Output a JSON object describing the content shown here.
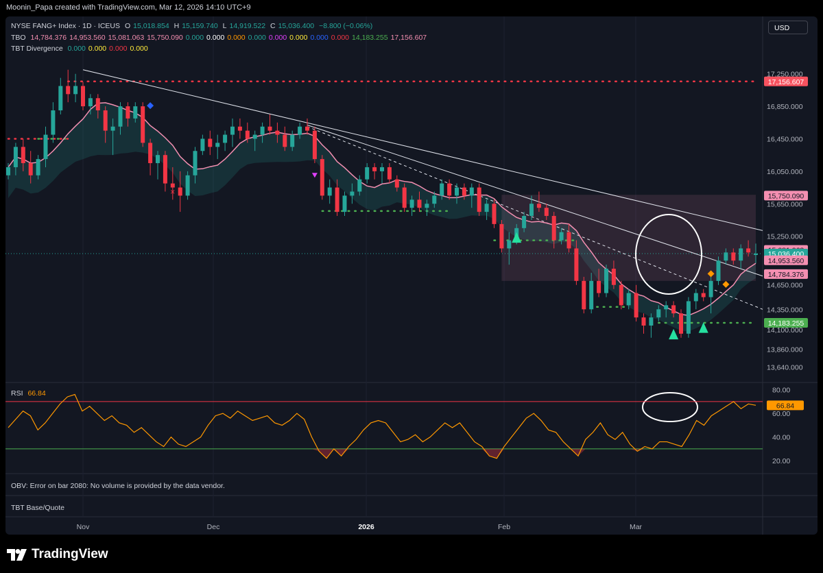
{
  "header_text": "Moonin_Papa created with TradingView.com, Mar 12, 2026 14:10 UTC+9",
  "currency": "USD",
  "legend": {
    "symbol": "NYSE FANG+ Index · 1D · ICEUS",
    "o_label": "O",
    "o": "15,018.854",
    "h_label": "H",
    "h": "15,159.740",
    "l_label": "L",
    "l": "14,919.522",
    "c_label": "C",
    "c": "15,036.400",
    "change": "−8.800 (−0.06%)",
    "tbo_name": "TBO",
    "tbo_values": [
      {
        "v": "14,784.376",
        "color": "#f48fb1"
      },
      {
        "v": "14,953.560",
        "color": "#f48fb1"
      },
      {
        "v": "15,081.063",
        "color": "#f48fb1"
      },
      {
        "v": "15,750.090",
        "color": "#f48fb1"
      },
      {
        "v": "0.000",
        "color": "#26a69a"
      },
      {
        "v": "0.000",
        "color": "#ffffff"
      },
      {
        "v": "0.000",
        "color": "#ff9800"
      },
      {
        "v": "0.000",
        "color": "#26a69a"
      },
      {
        "v": "0.000",
        "color": "#e040fb"
      },
      {
        "v": "0.000",
        "color": "#ffeb3b"
      },
      {
        "v": "0.000",
        "color": "#2962ff"
      },
      {
        "v": "0.000",
        "color": "#f23645"
      },
      {
        "v": "14,183.255",
        "color": "#4caf50"
      },
      {
        "v": "17,156.607",
        "color": "#f48fb1"
      }
    ],
    "div_name": "TBT Divergence",
    "div_values": [
      {
        "v": "0.000",
        "color": "#26a69a"
      },
      {
        "v": "0.000",
        "color": "#ffeb3b"
      },
      {
        "v": "0.000",
        "color": "#f23645"
      },
      {
        "v": "0.000",
        "color": "#ffeb3b"
      }
    ]
  },
  "rsi_label": "RSI",
  "rsi_value": "66.84",
  "obv_text": "OBV: Error on bar 2080: No volume is provided by the data vendor.",
  "tbt_text": "TBT Base/Quote",
  "brand": "TradingView",
  "colors": {
    "up": "#26a69a",
    "down": "#f23645",
    "rsi": "#ff9800",
    "ma_cyan": "#80deea",
    "ma_pink": "#f48fb1"
  },
  "chart_data": [
    {
      "type": "candlestick",
      "title": "NYSE FANG+ Index · 1D · ICEUS",
      "ylim": [
        13500,
        17450
      ],
      "y_ticks": [
        "17,250.000",
        "16,850.000",
        "16,450.000",
        "16,050.000",
        "15,650.000",
        "15,250.000",
        "14,650.000",
        "14,350.000",
        "14,100.000",
        "13,860.000",
        "13,640.000"
      ],
      "y_tick_values": [
        17250,
        16850,
        16450,
        16050,
        15650,
        15250,
        14650,
        14350,
        14100,
        13860,
        13640
      ],
      "x_labels": [
        "Nov",
        "Dec",
        "2026",
        "Feb",
        "Mar"
      ],
      "candles": [
        [
          16000,
          16150,
          15950,
          16100
        ],
        [
          16100,
          16400,
          16000,
          16350
        ],
        [
          16350,
          16450,
          16050,
          16150
        ],
        [
          16150,
          16300,
          15900,
          16000
        ],
        [
          16000,
          16250,
          15950,
          16200
        ],
        [
          16200,
          16600,
          16100,
          16500
        ],
        [
          16500,
          16900,
          16400,
          16800
        ],
        [
          16800,
          17200,
          16750,
          17100
        ],
        [
          17100,
          17300,
          16900,
          17000
        ],
        [
          17000,
          17250,
          16900,
          17100
        ],
        [
          17100,
          17150,
          16800,
          16850
        ],
        [
          16850,
          17000,
          16750,
          16950
        ],
        [
          16950,
          17000,
          16700,
          16800
        ],
        [
          16800,
          16850,
          16400,
          16550
        ],
        [
          16550,
          16700,
          16250,
          16600
        ],
        [
          16600,
          16900,
          16500,
          16850
        ],
        [
          16850,
          16900,
          16600,
          16700
        ],
        [
          16700,
          16900,
          16650,
          16850
        ],
        [
          16850,
          16900,
          16350,
          16400
        ],
        [
          16400,
          16450,
          16000,
          16150
        ],
        [
          16150,
          16300,
          15950,
          16250
        ],
        [
          16250,
          16300,
          15800,
          15900
        ],
        [
          15900,
          16100,
          15700,
          15850
        ],
        [
          15850,
          16050,
          15550,
          15750
        ],
        [
          15750,
          16050,
          15700,
          16000
        ],
        [
          16000,
          16350,
          15900,
          16300
        ],
        [
          16300,
          16500,
          16250,
          16450
        ],
        [
          16450,
          16550,
          16250,
          16350
        ],
        [
          16350,
          16500,
          16200,
          16400
        ],
        [
          16400,
          16550,
          16300,
          16500
        ],
        [
          16500,
          16700,
          16350,
          16600
        ],
        [
          16600,
          16700,
          16450,
          16550
        ],
        [
          16550,
          16650,
          16400,
          16450
        ],
        [
          16450,
          16550,
          16300,
          16500
        ],
        [
          16500,
          16650,
          16400,
          16600
        ],
        [
          16600,
          16750,
          16500,
          16550
        ],
        [
          16550,
          16650,
          16400,
          16500
        ],
        [
          16500,
          16600,
          16300,
          16350
        ],
        [
          16350,
          16550,
          16300,
          16500
        ],
        [
          16500,
          16650,
          16450,
          16600
        ],
        [
          16600,
          16700,
          16500,
          16550
        ],
        [
          16550,
          16600,
          16150,
          16200
        ],
        [
          16200,
          16250,
          15700,
          15750
        ],
        [
          15750,
          15950,
          15650,
          15850
        ],
        [
          15850,
          15950,
          15500,
          15550
        ],
        [
          15550,
          15800,
          15500,
          15750
        ],
        [
          15750,
          15900,
          15650,
          15800
        ],
        [
          15800,
          16000,
          15750,
          15950
        ],
        [
          15950,
          16150,
          15900,
          16100
        ],
        [
          16100,
          16150,
          15950,
          16050
        ],
        [
          16050,
          16150,
          15900,
          16100
        ],
        [
          16100,
          16150,
          15900,
          15950
        ],
        [
          15950,
          16000,
          15800,
          15850
        ],
        [
          15850,
          15900,
          15550,
          15600
        ],
        [
          15600,
          15750,
          15500,
          15700
        ],
        [
          15700,
          15800,
          15550,
          15600
        ],
        [
          15600,
          15700,
          15500,
          15650
        ],
        [
          15650,
          15800,
          15600,
          15750
        ],
        [
          15750,
          15950,
          15700,
          15900
        ],
        [
          15900,
          15950,
          15700,
          15750
        ],
        [
          15750,
          15900,
          15650,
          15850
        ],
        [
          15850,
          15900,
          15700,
          15750
        ],
        [
          15750,
          15900,
          15600,
          15850
        ],
        [
          15850,
          15900,
          15500,
          15550
        ],
        [
          15550,
          15700,
          15450,
          15650
        ],
        [
          15650,
          15700,
          15350,
          15400
        ],
        [
          15400,
          15450,
          15050,
          15100
        ],
        [
          15100,
          15300,
          14900,
          15200
        ],
        [
          15200,
          15400,
          15150,
          15350
        ],
        [
          15350,
          15550,
          15300,
          15500
        ],
        [
          15500,
          15750,
          15450,
          15650
        ],
        [
          15650,
          15800,
          15550,
          15600
        ],
        [
          15600,
          15650,
          15450,
          15500
        ],
        [
          15500,
          15550,
          15100,
          15200
        ],
        [
          15200,
          15350,
          15150,
          15300
        ],
        [
          15300,
          15400,
          15050,
          15100
        ],
        [
          15100,
          15200,
          14650,
          14700
        ],
        [
          14700,
          14750,
          14300,
          14350
        ],
        [
          14350,
          14800,
          14300,
          14700
        ],
        [
          14700,
          14850,
          14500,
          14550
        ],
        [
          14550,
          14900,
          14500,
          14850
        ],
        [
          14850,
          14950,
          14600,
          14650
        ],
        [
          14650,
          14700,
          14350,
          14400
        ],
        [
          14400,
          14600,
          14350,
          14550
        ],
        [
          14550,
          14650,
          14200,
          14250
        ],
        [
          14250,
          14300,
          14050,
          14150
        ],
        [
          14150,
          14300,
          14000,
          14250
        ],
        [
          14250,
          14400,
          14200,
          14350
        ],
        [
          14350,
          14450,
          14250,
          14400
        ],
        [
          14400,
          14450,
          14250,
          14300
        ],
        [
          14300,
          14350,
          14000,
          14050
        ],
        [
          14050,
          14500,
          14000,
          14450
        ],
        [
          14450,
          14600,
          14350,
          14550
        ],
        [
          14550,
          14600,
          14450,
          14500
        ],
        [
          14500,
          14750,
          14300,
          14700
        ],
        [
          14700,
          15000,
          14650,
          14950
        ],
        [
          14950,
          15100,
          14900,
          15050
        ],
        [
          15050,
          15100,
          14900,
          14950
        ],
        [
          14950,
          15150,
          14850,
          15100
        ],
        [
          15100,
          15200,
          15000,
          15050
        ],
        [
          15018.854,
          15159.74,
          14919.522,
          15036.4
        ]
      ],
      "price_labels": [
        {
          "value": 17156.607,
          "text": "17,156.607",
          "bg": "#f7525f",
          "fg": "#ffffff"
        },
        {
          "value": 15750.09,
          "text": "15,750.090",
          "bg": "#f48fb1",
          "fg": "#131722"
        },
        {
          "value": 15081.063,
          "text": "15,081.063",
          "bg": "#f48fb1",
          "fg": "#131722"
        },
        {
          "value": 15036.4,
          "text": "15,036.400",
          "bg": "#26a69a",
          "fg": "#ffffff"
        },
        {
          "value": 14953.56,
          "text": "14,953.560",
          "bg": "#f48fb1",
          "fg": "#131722"
        },
        {
          "value": 14784.376,
          "text": "14,784.376",
          "bg": "#f48fb1",
          "fg": "#131722"
        },
        {
          "value": 14183.255,
          "text": "14,183.255",
          "bg": "#4caf50",
          "fg": "#ffffff"
        }
      ]
    },
    {
      "type": "line",
      "title": "RSI",
      "ylim": [
        12,
        85
      ],
      "y_ticks": [
        "80.00",
        "60.00",
        "40.00",
        "20.00"
      ],
      "y_tick_values": [
        80,
        60,
        40,
        20
      ],
      "bands": [
        70,
        30
      ],
      "values": [
        48,
        55,
        62,
        58,
        46,
        52,
        60,
        68,
        74,
        76,
        62,
        66,
        60,
        54,
        58,
        52,
        50,
        44,
        48,
        42,
        36,
        32,
        40,
        34,
        32,
        36,
        40,
        50,
        58,
        60,
        56,
        62,
        58,
        54,
        56,
        58,
        52,
        50,
        54,
        60,
        55,
        40,
        28,
        22,
        30,
        24,
        32,
        38,
        46,
        52,
        54,
        52,
        44,
        36,
        38,
        42,
        36,
        40,
        46,
        52,
        48,
        52,
        44,
        36,
        32,
        24,
        22,
        32,
        40,
        48,
        56,
        60,
        54,
        46,
        44,
        36,
        30,
        24,
        38,
        44,
        52,
        42,
        38,
        44,
        34,
        28,
        32,
        30,
        36,
        36,
        34,
        32,
        42,
        54,
        50,
        58,
        62,
        66,
        70,
        64,
        68,
        66.84
      ]
    }
  ]
}
